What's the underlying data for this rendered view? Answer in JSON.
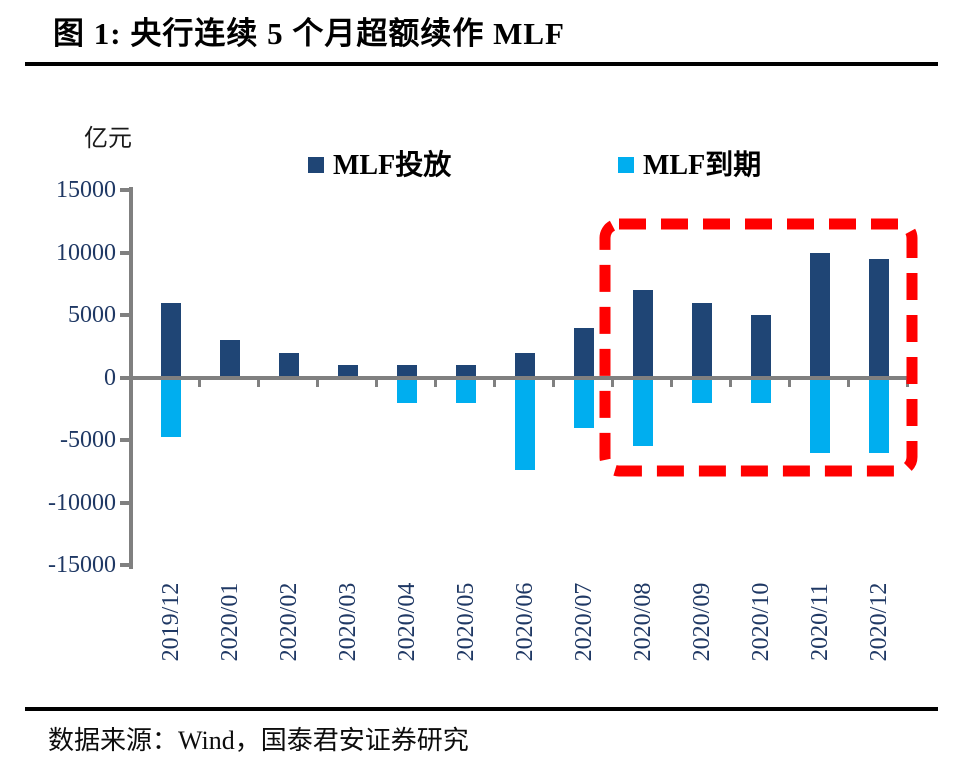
{
  "figure": {
    "title": "图 1:  央行连续 5 个月超额续作 MLF",
    "unit_label": "亿元",
    "source": "数据来源：Wind，国泰君安证券研究"
  },
  "legend": [
    {
      "label": "MLF投放",
      "color": "#1F4575"
    },
    {
      "label": "MLF到期",
      "color": "#00AEEF"
    }
  ],
  "chart_data": {
    "type": "bar",
    "title": "央行连续 5 个月超额续作 MLF",
    "unit": "亿元",
    "categories": [
      "2019/12",
      "2020/01",
      "2020/02",
      "2020/03",
      "2020/04",
      "2020/05",
      "2020/06",
      "2020/07",
      "2020/08",
      "2020/09",
      "2020/10",
      "2020/11",
      "2020/12"
    ],
    "series": [
      {
        "name": "MLF投放",
        "color": "#1F4575",
        "values": [
          6000,
          3000,
          2000,
          1000,
          1000,
          1000,
          2000,
          4000,
          7000,
          6000,
          5000,
          10000,
          9500
        ]
      },
      {
        "name": "MLF到期",
        "color": "#00AEEF",
        "values": [
          -4735,
          0,
          0,
          0,
          -2000,
          -2000,
          -7400,
          -4000,
          -5500,
          -2000,
          -2000,
          -6000,
          -6000
        ]
      }
    ],
    "ylim": [
      -15000,
      15000
    ],
    "yticks": [
      15000,
      10000,
      5000,
      0,
      -5000,
      -10000,
      -15000
    ],
    "ytick_interval": 5000,
    "grid": false,
    "legend_position": "top",
    "axis_color": "#808080",
    "tick_label_color": "#1F3864",
    "annotation": {
      "type": "dashed-box",
      "color": "#FF0000",
      "from_category": "2020/08",
      "to_category": "2020/12"
    }
  }
}
